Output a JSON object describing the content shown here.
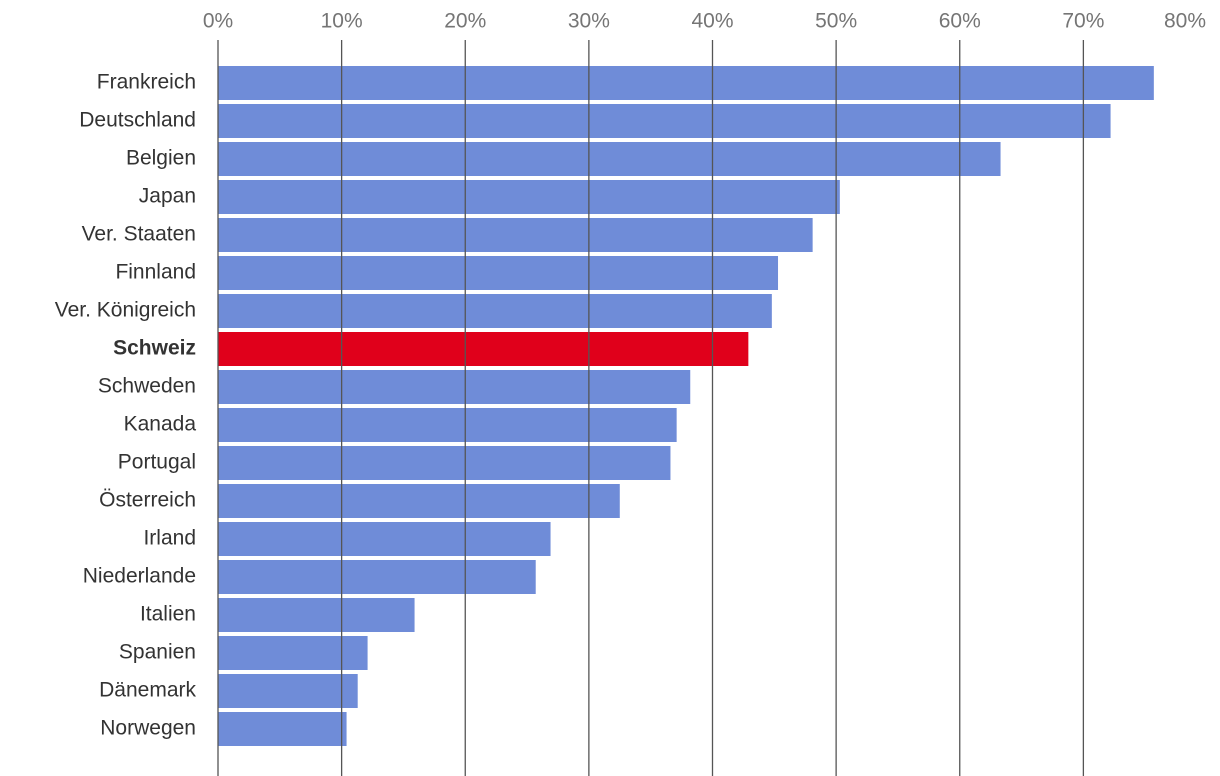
{
  "chart_data": {
    "type": "bar",
    "orientation": "horizontal",
    "categories": [
      "Frankreich",
      "Deutschland",
      "Belgien",
      "Japan",
      "Ver. Staaten",
      "Finnland",
      "Ver. Königreich",
      "Schweiz",
      "Schweden",
      "Kanada",
      "Portugal",
      "Österreich",
      "Irland",
      "Niederlande",
      "Italien",
      "Spanien",
      "Dänemark",
      "Norwegen"
    ],
    "values": [
      75.7,
      72.2,
      63.3,
      50.3,
      48.1,
      45.3,
      44.8,
      42.9,
      38.2,
      37.1,
      36.6,
      32.5,
      26.9,
      25.7,
      15.9,
      12.1,
      11.3,
      10.4
    ],
    "color": "#6f8cd8",
    "colors": [
      "#6f8cd8",
      "#6f8cd8",
      "#6f8cd8",
      "#6f8cd8",
      "#6f8cd8",
      "#6f8cd8",
      "#6f8cd8",
      "#e0001b",
      "#6f8cd8",
      "#6f8cd8",
      "#6f8cd8",
      "#6f8cd8",
      "#6f8cd8",
      "#6f8cd8",
      "#6f8cd8",
      "#6f8cd8",
      "#6f8cd8",
      "#6f8cd8"
    ],
    "xlim": [
      0,
      80
    ],
    "xticks": [
      {
        "value": 0,
        "label": "0%"
      },
      {
        "value": 10,
        "label": "10%"
      },
      {
        "value": 20,
        "label": "20%"
      },
      {
        "value": 30,
        "label": "30%"
      },
      {
        "value": 40,
        "label": "40%"
      },
      {
        "value": 50,
        "label": "50%"
      },
      {
        "value": 60,
        "label": "60%"
      },
      {
        "value": 70,
        "label": "70%"
      },
      {
        "value": 80,
        "label": "80%"
      }
    ],
    "grid": true
  }
}
